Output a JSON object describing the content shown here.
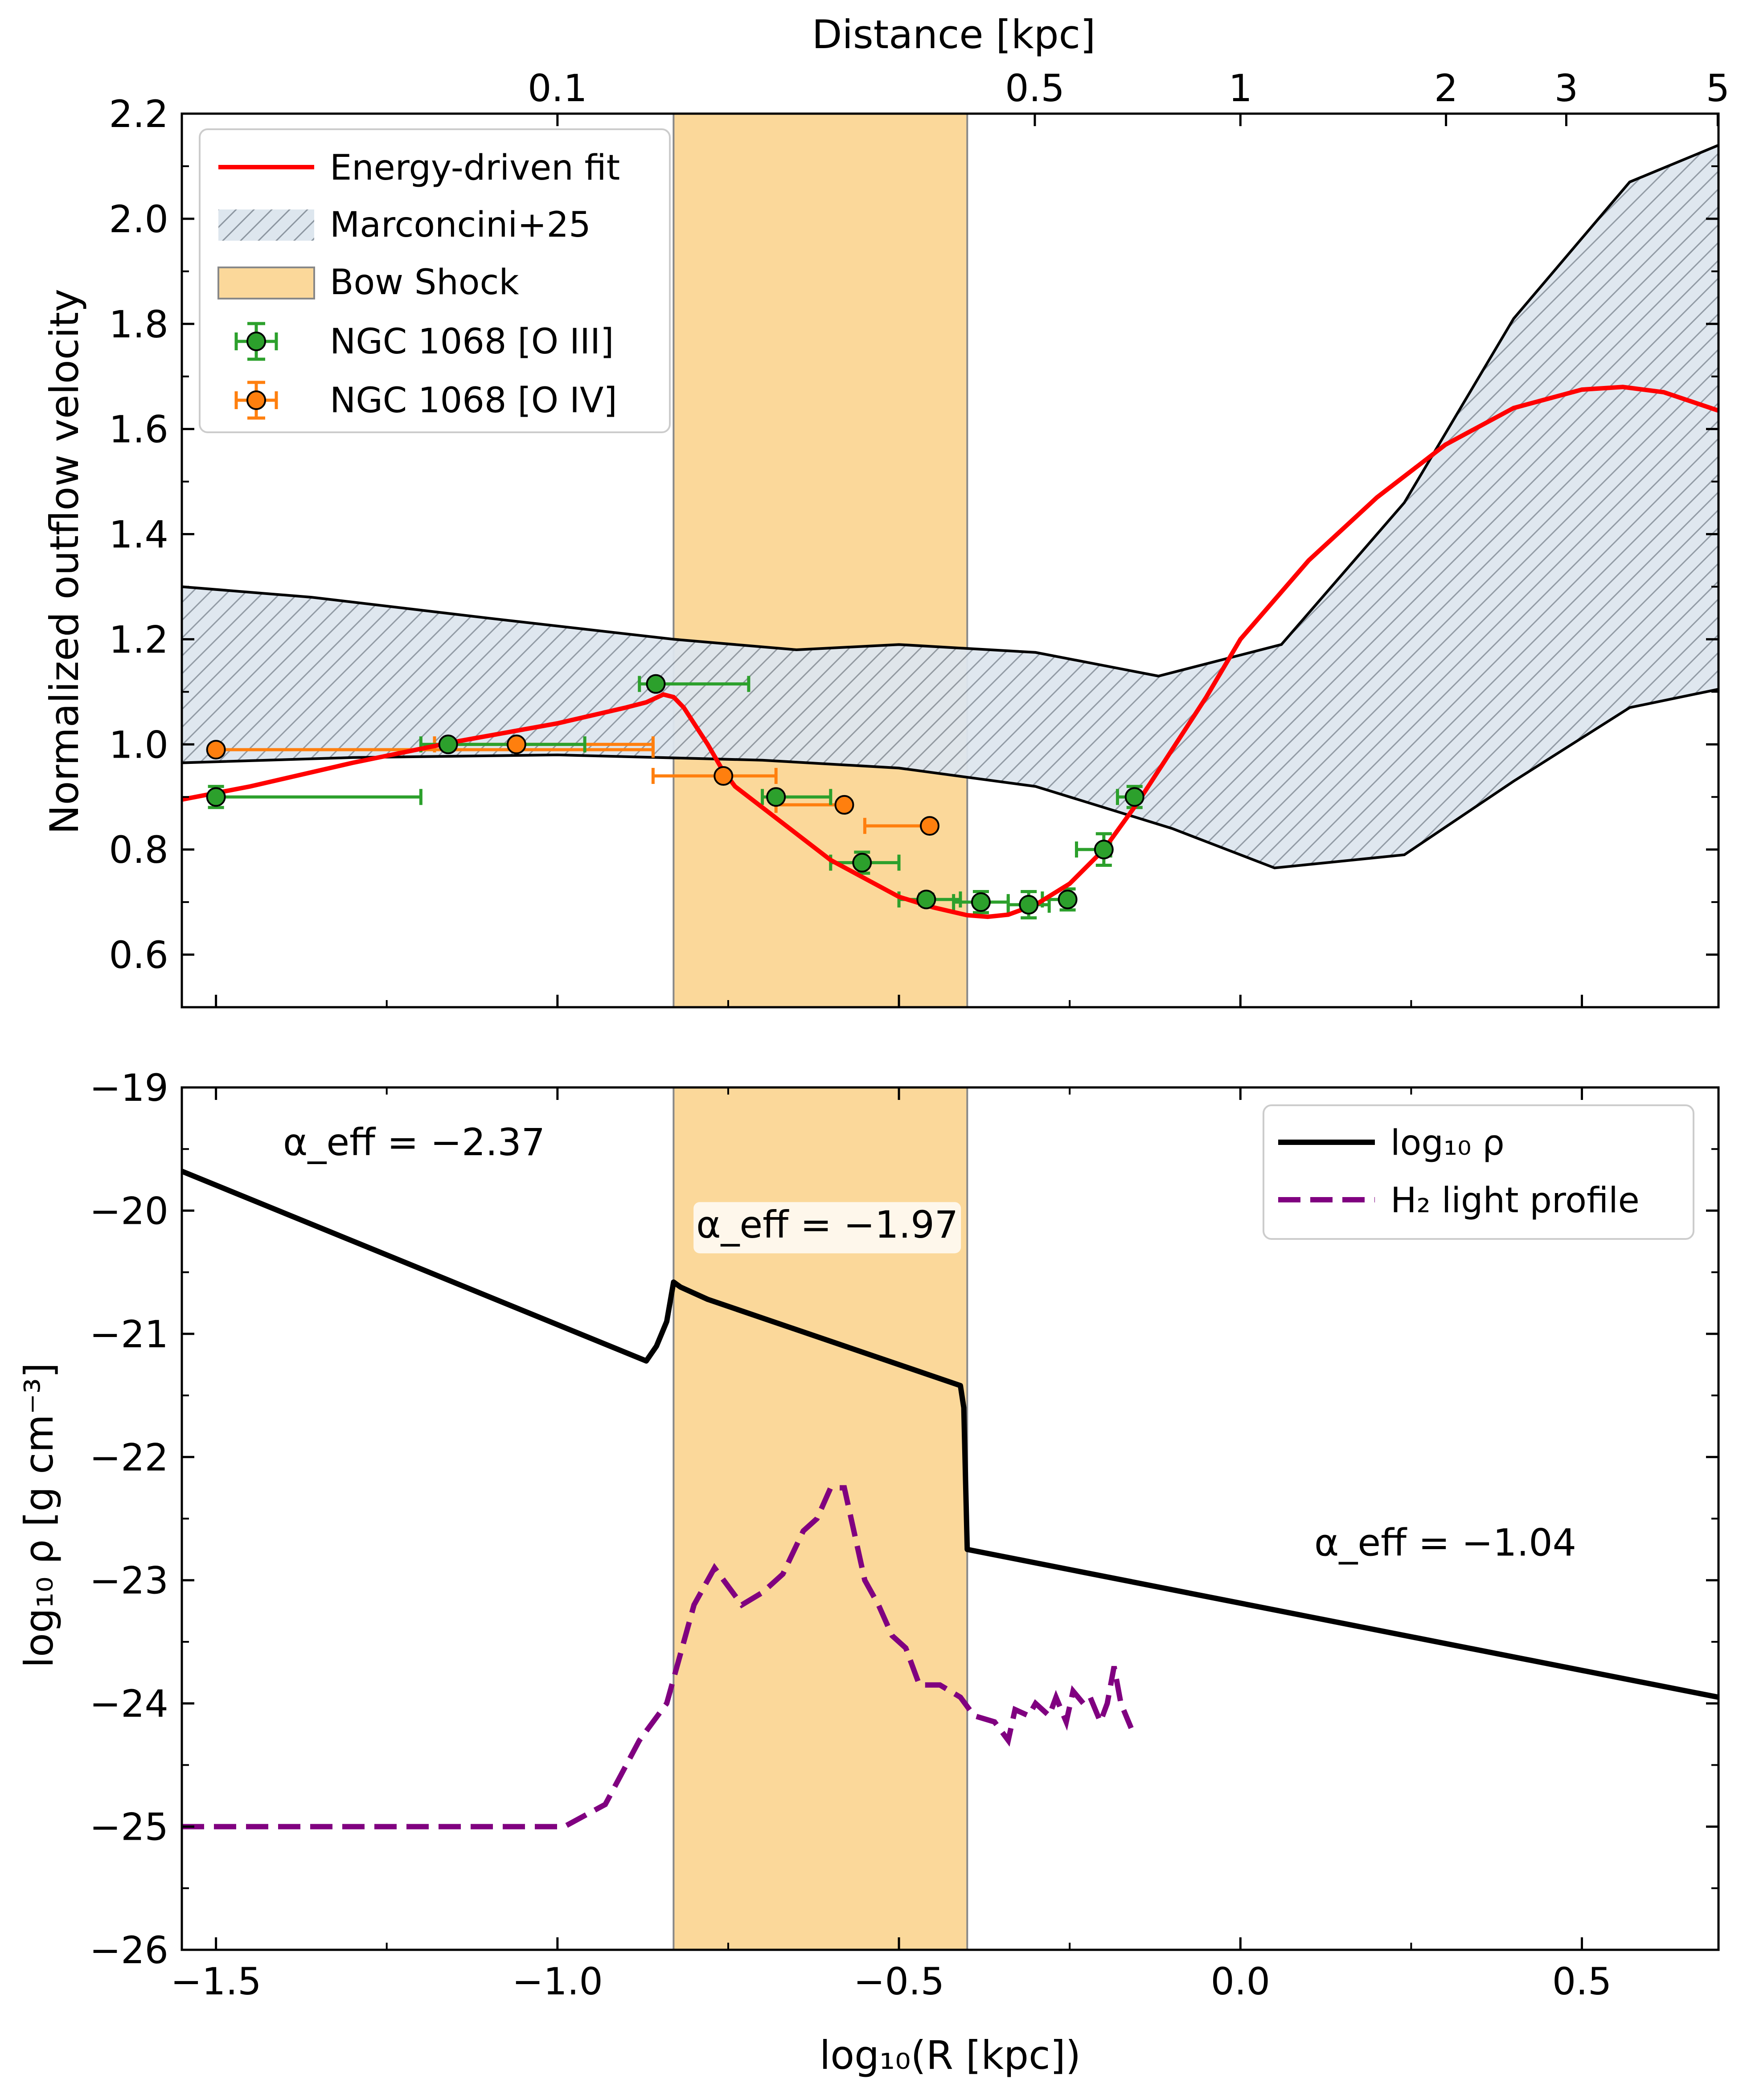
{
  "chart_data": [
    {
      "type": "line",
      "panel": "top",
      "top_axis": {
        "label": "Distance [kpc]",
        "ticks": [
          {
            "kpc": 0.1,
            "label": "0.1"
          },
          {
            "kpc": 0.5,
            "label": "0.5"
          },
          {
            "kpc": 1,
            "label": "1"
          },
          {
            "kpc": 2,
            "label": "2"
          },
          {
            "kpc": 3,
            "label": "3"
          },
          {
            "kpc": 5,
            "label": "5"
          }
        ]
      },
      "ylabel": "Normalized outflow velocity",
      "ylim": [
        0.5,
        2.2
      ],
      "xlim": [
        -1.55,
        0.7
      ],
      "yticks": [
        {
          "v": 0.6,
          "label": "0.6"
        },
        {
          "v": 0.8,
          "label": "0.8"
        },
        {
          "v": 1.0,
          "label": "1.0"
        },
        {
          "v": 1.2,
          "label": "1.2"
        },
        {
          "v": 1.4,
          "label": "1.4"
        },
        {
          "v": 1.6,
          "label": "1.6"
        },
        {
          "v": 1.8,
          "label": "1.8"
        },
        {
          "v": 2.0,
          "label": "2.0"
        },
        {
          "v": 2.2,
          "label": "2.2"
        }
      ],
      "bow_shock": {
        "x0": -0.83,
        "x1": -0.4
      },
      "legend": {
        "placement": "top-left",
        "entries": [
          {
            "key": "fit",
            "label": "Energy-driven fit"
          },
          {
            "key": "band",
            "label": "Marconcini+25"
          },
          {
            "key": "shock",
            "label": "Bow Shock"
          },
          {
            "key": "oiii",
            "label": "NGC 1068 [O III]"
          },
          {
            "key": "oiv",
            "label": "NGC 1068 [O IV]"
          }
        ]
      },
      "band_upper": [
        [
          -1.55,
          1.3
        ],
        [
          -1.36,
          1.28
        ],
        [
          -1.1,
          1.24
        ],
        [
          -0.83,
          1.2
        ],
        [
          -0.65,
          1.18
        ],
        [
          -0.5,
          1.19
        ],
        [
          -0.3,
          1.175
        ],
        [
          -0.12,
          1.13
        ],
        [
          0.06,
          1.19
        ],
        [
          0.24,
          1.46
        ],
        [
          0.4,
          1.81
        ],
        [
          0.57,
          2.07
        ],
        [
          0.7,
          2.14
        ]
      ],
      "band_lower": [
        [
          -1.55,
          0.965
        ],
        [
          -1.3,
          0.975
        ],
        [
          -1.0,
          0.98
        ],
        [
          -0.7,
          0.97
        ],
        [
          -0.5,
          0.955
        ],
        [
          -0.3,
          0.92
        ],
        [
          -0.1,
          0.84
        ],
        [
          0.05,
          0.765
        ],
        [
          0.24,
          0.79
        ],
        [
          0.4,
          0.93
        ],
        [
          0.57,
          1.07
        ],
        [
          0.7,
          1.105
        ]
      ],
      "fit": [
        [
          -1.55,
          0.895
        ],
        [
          -1.45,
          0.92
        ],
        [
          -1.3,
          0.965
        ],
        [
          -1.15,
          1.005
        ],
        [
          -1.0,
          1.04
        ],
        [
          -0.9,
          1.07
        ],
        [
          -0.87,
          1.08
        ],
        [
          -0.845,
          1.095
        ],
        [
          -0.83,
          1.09
        ],
        [
          -0.815,
          1.07
        ],
        [
          -0.8,
          1.04
        ],
        [
          -0.78,
          1.0
        ],
        [
          -0.76,
          0.955
        ],
        [
          -0.74,
          0.92
        ],
        [
          -0.7,
          0.88
        ],
        [
          -0.65,
          0.83
        ],
        [
          -0.6,
          0.78
        ],
        [
          -0.55,
          0.745
        ],
        [
          -0.5,
          0.71
        ],
        [
          -0.45,
          0.69
        ],
        [
          -0.4,
          0.675
        ],
        [
          -0.37,
          0.672
        ],
        [
          -0.34,
          0.676
        ],
        [
          -0.3,
          0.695
        ],
        [
          -0.25,
          0.735
        ],
        [
          -0.2,
          0.8
        ],
        [
          -0.15,
          0.89
        ],
        [
          -0.1,
          0.99
        ],
        [
          -0.05,
          1.09
        ],
        [
          0.0,
          1.2
        ],
        [
          0.1,
          1.35
        ],
        [
          0.2,
          1.47
        ],
        [
          0.3,
          1.57
        ],
        [
          0.4,
          1.64
        ],
        [
          0.5,
          1.675
        ],
        [
          0.56,
          1.68
        ],
        [
          0.62,
          1.67
        ],
        [
          0.7,
          1.635
        ]
      ],
      "oiii": [
        {
          "x": -1.5,
          "y": 0.9,
          "xlo": -1.5,
          "xhi": -1.2,
          "yerr": 0.02
        },
        {
          "x": -1.16,
          "y": 1.0,
          "xlo": -1.2,
          "xhi": -0.96,
          "yerr": 0.005
        },
        {
          "x": -0.856,
          "y": 1.115,
          "xlo": -0.88,
          "xhi": -0.72,
          "yerr": 0.005
        },
        {
          "x": -0.68,
          "y": 0.9,
          "xlo": -0.7,
          "xhi": -0.6,
          "yerr": 0.005
        },
        {
          "x": -0.554,
          "y": 0.775,
          "xlo": -0.6,
          "xhi": -0.5,
          "yerr": 0.02
        },
        {
          "x": -0.46,
          "y": 0.705,
          "xlo": -0.5,
          "xhi": -0.41,
          "yerr": 0.01
        },
        {
          "x": -0.38,
          "y": 0.7,
          "xlo": -0.42,
          "xhi": -0.34,
          "yerr": 0.02
        },
        {
          "x": -0.31,
          "y": 0.695,
          "xlo": -0.34,
          "xhi": -0.28,
          "yerr": 0.025
        },
        {
          "x": -0.253,
          "y": 0.705,
          "xlo": -0.29,
          "xhi": -0.25,
          "yerr": 0.02
        },
        {
          "x": -0.2,
          "y": 0.8,
          "xlo": -0.24,
          "xhi": -0.19,
          "yerr": 0.03
        },
        {
          "x": -0.155,
          "y": 0.9,
          "xlo": -0.18,
          "xhi": -0.15,
          "yerr": 0.02
        }
      ],
      "oiv": [
        {
          "x": -1.5,
          "y": 0.99,
          "xlo": -1.5,
          "xhi": -0.86,
          "yerr": 0.005
        },
        {
          "x": -1.06,
          "y": 1.0,
          "xlo": -1.18,
          "xhi": -0.86,
          "yerr": 0.005
        },
        {
          "x": -0.757,
          "y": 0.94,
          "xlo": -0.86,
          "xhi": -0.68,
          "yerr": 0.005
        },
        {
          "x": -0.58,
          "y": 0.885,
          "xlo": -0.68,
          "xhi": -0.58,
          "yerr": 0.005
        },
        {
          "x": -0.455,
          "y": 0.845,
          "xlo": -0.55,
          "xhi": -0.46,
          "yerr": 0.005
        }
      ],
      "colors": {
        "fit": "#ff0000",
        "band_fill": "#dde6ee",
        "band_hatch": "#8c96a0",
        "shock": "#fbd89a",
        "oiii": "#2ca02c",
        "oiv": "#ff7f0e"
      }
    },
    {
      "type": "line",
      "panel": "bottom",
      "xlabel": "log₁₀(R [kpc])",
      "ylabel_main": "log₁₀ ρ [g cm⁻³]",
      "ylim": [
        -26,
        -19
      ],
      "xlim": [
        -1.55,
        0.7
      ],
      "xticks": [
        {
          "v": -1.5,
          "label": "−1.5"
        },
        {
          "v": -1.0,
          "label": "−1.0"
        },
        {
          "v": -0.5,
          "label": "−0.5"
        },
        {
          "v": 0.0,
          "label": "0.0"
        },
        {
          "v": 0.5,
          "label": "0.5"
        }
      ],
      "yticks": [
        {
          "v": -26,
          "label": "−26"
        },
        {
          "v": -25,
          "label": "−25"
        },
        {
          "v": -24,
          "label": "−24"
        },
        {
          "v": -23,
          "label": "−23"
        },
        {
          "v": -22,
          "label": "−22"
        },
        {
          "v": -21,
          "label": "−21"
        },
        {
          "v": -20,
          "label": "−20"
        },
        {
          "v": -19,
          "label": "−19"
        }
      ],
      "bow_shock": {
        "x0": -0.83,
        "x1": -0.4
      },
      "legend": {
        "placement": "top-right",
        "entries": [
          {
            "key": "rho",
            "label": "log₁₀ ρ"
          },
          {
            "key": "h2",
            "label": "H₂ light profile"
          }
        ]
      },
      "annotations": [
        {
          "label": "α_eff = −2.37",
          "x": -1.21,
          "y": -19.55,
          "boxed": false
        },
        {
          "label": "α_eff = −1.97",
          "x": -0.605,
          "y": -20.22,
          "boxed": true
        },
        {
          "label": "α_eff = −1.04",
          "x": 0.3,
          "y": -22.8,
          "boxed": false
        }
      ],
      "rho": [
        [
          -1.55,
          -19.68
        ],
        [
          -0.87,
          -21.22
        ],
        [
          -0.855,
          -21.1
        ],
        [
          -0.84,
          -20.9
        ],
        [
          -0.83,
          -20.58
        ],
        [
          -0.82,
          -20.62
        ],
        [
          -0.78,
          -20.72
        ],
        [
          -0.41,
          -21.42
        ],
        [
          -0.405,
          -21.6
        ],
        [
          -0.4,
          -22.75
        ],
        [
          0.7,
          -23.95
        ]
      ],
      "h2": [
        [
          -1.55,
          -25.0
        ],
        [
          -0.99,
          -25.0
        ],
        [
          -0.93,
          -24.82
        ],
        [
          -0.88,
          -24.3
        ],
        [
          -0.84,
          -24.0
        ],
        [
          -0.82,
          -23.6
        ],
        [
          -0.8,
          -23.2
        ],
        [
          -0.77,
          -22.9
        ],
        [
          -0.75,
          -23.05
        ],
        [
          -0.73,
          -23.2
        ],
        [
          -0.7,
          -23.1
        ],
        [
          -0.67,
          -22.95
        ],
        [
          -0.64,
          -22.6
        ],
        [
          -0.62,
          -22.5
        ],
        [
          -0.6,
          -22.25
        ],
        [
          -0.58,
          -22.25
        ],
        [
          -0.55,
          -23.0
        ],
        [
          -0.53,
          -23.2
        ],
        [
          -0.51,
          -23.45
        ],
        [
          -0.49,
          -23.55
        ],
        [
          -0.47,
          -23.85
        ],
        [
          -0.44,
          -23.85
        ],
        [
          -0.41,
          -23.95
        ],
        [
          -0.39,
          -24.1
        ],
        [
          -0.36,
          -24.15
        ],
        [
          -0.34,
          -24.3
        ],
        [
          -0.33,
          -24.05
        ],
        [
          -0.31,
          -24.1
        ],
        [
          -0.3,
          -24.0
        ],
        [
          -0.28,
          -24.1
        ],
        [
          -0.27,
          -23.95
        ],
        [
          -0.255,
          -24.15
        ],
        [
          -0.245,
          -23.9
        ],
        [
          -0.23,
          -24.0
        ],
        [
          -0.22,
          -23.95
        ],
        [
          -0.205,
          -24.15
        ],
        [
          -0.195,
          -24.0
        ],
        [
          -0.185,
          -23.7
        ],
        [
          -0.175,
          -24.0
        ],
        [
          -0.16,
          -24.2
        ]
      ],
      "colors": {
        "rho": "#000000",
        "h2": "#800080",
        "shock": "#fbd89a"
      }
    }
  ]
}
